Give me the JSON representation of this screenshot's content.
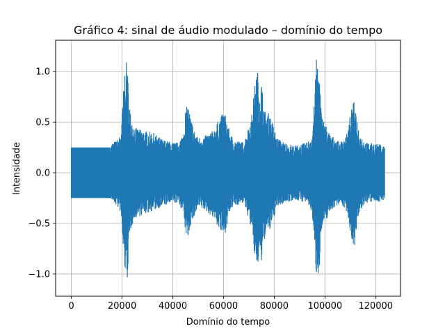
{
  "chart_data": {
    "type": "line",
    "title": "Gráfico 4: sinal de áudio modulado – domínio do tempo",
    "xlabel": "Domínio do tempo",
    "ylabel": "Intensidade",
    "xlim": [
      -6200,
      129800
    ],
    "ylim": [
      -1.22,
      1.31
    ],
    "grid": true,
    "x_ticks": [
      0,
      20000,
      40000,
      60000,
      80000,
      100000,
      120000
    ],
    "x_tick_labels": [
      "0",
      "20000",
      "40000",
      "60000",
      "80000",
      "100000",
      "120000"
    ],
    "y_ticks": [
      -1.0,
      -0.5,
      0.0,
      0.5,
      1.0
    ],
    "y_tick_labels": [
      "−1.0",
      "−0.5",
      "0.0",
      "0.5",
      "1.0"
    ],
    "series_color": "#1f77b4",
    "x_range": [
      0,
      123600
    ],
    "envelope": {
      "x": [
        0,
        15500,
        16000,
        18000,
        19500,
        20500,
        21300,
        22000,
        22600,
        23500,
        25000,
        28000,
        32000,
        36000,
        40000,
        42000,
        44000,
        45000,
        46000,
        47000,
        48500,
        50000,
        53000,
        56000,
        58000,
        59500,
        60500,
        61500,
        62500,
        64000,
        68000,
        71000,
        72000,
        72800,
        73500,
        74200,
        75000,
        76000,
        77000,
        78000,
        79500,
        81000,
        84000,
        88000,
        93000,
        95000,
        96000,
        96700,
        97300,
        98000,
        98500,
        99000,
        100000,
        102000,
        106000,
        109000,
        110000,
        111000,
        111800,
        112800,
        114000,
        116000,
        120000,
        123600
      ],
      "upper": [
        0.25,
        0.25,
        0.3,
        0.32,
        0.38,
        0.8,
        1.08,
        1.1,
        0.78,
        0.55,
        0.45,
        0.42,
        0.4,
        0.33,
        0.3,
        0.3,
        0.38,
        0.62,
        0.68,
        0.55,
        0.42,
        0.35,
        0.37,
        0.42,
        0.52,
        0.58,
        0.6,
        0.5,
        0.4,
        0.33,
        0.3,
        0.55,
        0.78,
        0.97,
        1.0,
        0.8,
        0.9,
        0.65,
        0.57,
        0.6,
        0.48,
        0.35,
        0.3,
        0.27,
        0.3,
        0.38,
        0.78,
        1.2,
        1.05,
        0.9,
        0.62,
        0.55,
        0.5,
        0.38,
        0.3,
        0.4,
        0.58,
        0.68,
        0.72,
        0.5,
        0.38,
        0.3,
        0.29,
        0.27
      ],
      "lower": [
        -0.25,
        -0.25,
        -0.28,
        -0.33,
        -0.4,
        -0.8,
        -1.0,
        -1.09,
        -0.8,
        -0.55,
        -0.45,
        -0.42,
        -0.38,
        -0.33,
        -0.3,
        -0.3,
        -0.38,
        -0.6,
        -0.65,
        -0.52,
        -0.44,
        -0.35,
        -0.38,
        -0.44,
        -0.55,
        -0.62,
        -0.62,
        -0.5,
        -0.4,
        -0.33,
        -0.3,
        -0.55,
        -0.8,
        -0.89,
        -0.95,
        -0.78,
        -0.9,
        -0.68,
        -0.58,
        -0.6,
        -0.48,
        -0.35,
        -0.3,
        -0.27,
        -0.3,
        -0.4,
        -0.82,
        -1.03,
        -1.0,
        -0.9,
        -0.6,
        -0.55,
        -0.5,
        -0.38,
        -0.3,
        -0.4,
        -0.6,
        -0.7,
        -0.72,
        -0.5,
        -0.38,
        -0.3,
        -0.29,
        -0.28
      ]
    }
  }
}
